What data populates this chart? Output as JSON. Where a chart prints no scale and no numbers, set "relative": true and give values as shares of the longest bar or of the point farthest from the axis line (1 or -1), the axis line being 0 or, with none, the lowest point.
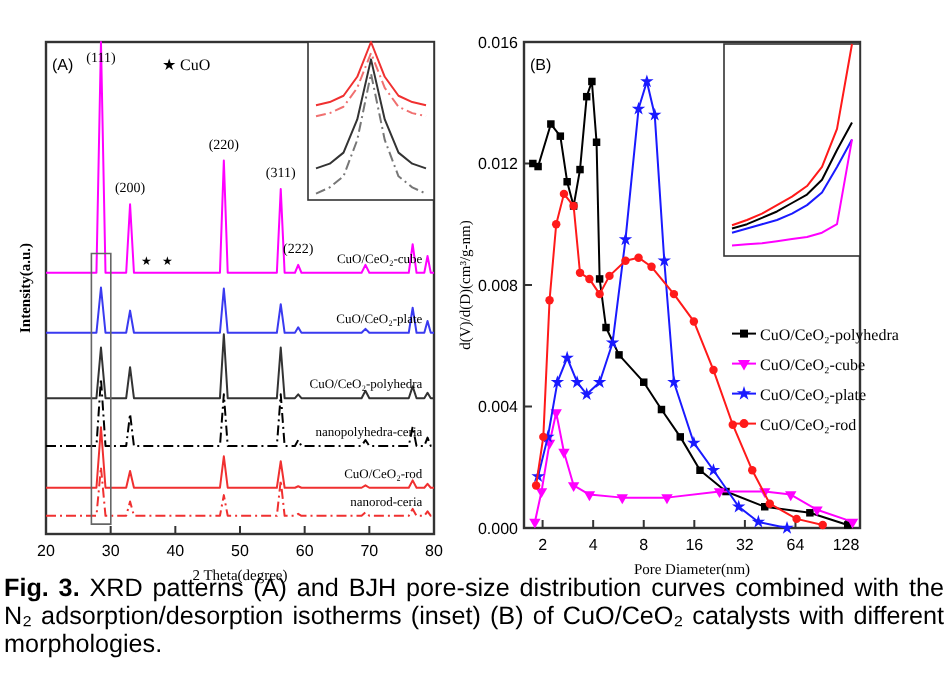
{
  "chart_data": [
    {
      "type": "line",
      "relative": true,
      "xlabel": "2 Theta(degree)",
      "ylabel": "Intensity(a.u.)",
      "xlim": [
        20,
        80
      ],
      "xticks": [
        20,
        30,
        40,
        50,
        60,
        70,
        80
      ],
      "x": [
        20,
        27.8,
        28.5,
        29.2,
        32.4,
        33,
        33.6,
        35.5,
        38.7,
        46.9,
        47.5,
        48.1,
        55.7,
        56.3,
        56.9,
        58.5,
        59,
        59.5,
        68.8,
        69.4,
        70,
        76.1,
        76.7,
        77.3,
        78.5,
        79,
        79.5,
        80
      ],
      "series": [
        {
          "name": "CuO/CeO₂-cube",
          "color": "#ff00ff",
          "values": [
            0.531,
            0.531,
            1,
            0.531,
            0.531,
            0.67,
            0.531,
            0.531,
            0.531,
            0.531,
            0.759,
            0.531,
            0.531,
            0.701,
            0.531,
            0.531,
            0.547,
            0.531,
            0.531,
            0.547,
            0.531,
            0.531,
            0.589,
            0.531,
            0.531,
            0.565,
            0.531,
            0.531
          ]
        },
        {
          "name": "CuO/CeO₂-plate",
          "color": "#3a3af0",
          "values": [
            0.409,
            0.409,
            0.501,
            0.409,
            0.409,
            0.454,
            0.409,
            0.409,
            0.409,
            0.409,
            0.499,
            0.409,
            0.409,
            0.467,
            0.409,
            0.409,
            0.42,
            0.409,
            0.409,
            0.417,
            0.409,
            0.409,
            0.46,
            0.409,
            0.409,
            0.433,
            0.409,
            0.409
          ]
        },
        {
          "name": "CuO/CeO₂-polyhedra",
          "color": "#333333",
          "values": [
            0.276,
            0.276,
            0.379,
            0.276,
            0.276,
            0.339,
            0.276,
            0.276,
            0.276,
            0.276,
            0.406,
            0.276,
            0.276,
            0.379,
            0.276,
            0.276,
            0.284,
            0.276,
            0.276,
            0.291,
            0.276,
            0.276,
            0.3,
            0.276,
            0.276,
            0.287,
            0.276,
            0.276
          ]
        },
        {
          "name": "nanopolyhedra-ceria",
          "color": "#000000",
          "line_style": "dashed",
          "values": [
            0.179,
            0.179,
            0.316,
            0.179,
            0.179,
            0.244,
            0.179,
            0.179,
            0.179,
            0.179,
            0.284,
            0.179,
            0.179,
            0.284,
            0.179,
            0.179,
            0.191,
            0.179,
            0.179,
            0.191,
            0.179,
            0.179,
            0.218,
            0.179,
            0.179,
            0.196,
            0.179,
            0.179
          ]
        },
        {
          "name": "CuO/CeO₂-rod",
          "color": "#f03030",
          "values": [
            0.094,
            0.094,
            0.217,
            0.094,
            0.094,
            0.128,
            0.094,
            0.094,
            0.094,
            0.094,
            0.158,
            0.094,
            0.094,
            0.148,
            0.094,
            0.094,
            0.097,
            0.094,
            0.094,
            0.099,
            0.094,
            0.094,
            0.109,
            0.094,
            0.094,
            0.102,
            0.094,
            0.094
          ]
        },
        {
          "name": "nanorod-ceria",
          "color": "#f03030",
          "line_style": "dashed",
          "values": [
            0.037,
            0.037,
            0.136,
            0.037,
            0.037,
            0.066,
            0.037,
            0.037,
            0.037,
            0.037,
            0.079,
            0.037,
            0.037,
            0.109,
            0.037,
            0.037,
            0.041,
            0.037,
            0.037,
            0.044,
            0.037,
            0.037,
            0.051,
            0.037,
            0.037,
            0.046,
            0.037,
            0.037
          ]
        }
      ],
      "annotations": [
        "(A)",
        "★ CuO",
        "Fig. 3. XRD patterns (A) and BJH pore-size distribution curves combined with the N₂ adsorption/desorption isotherms (inset) (B) of CuO/CeO₂ catalysts with different morphologies.",
        {
          "text": "(111)",
          "x": 28.5,
          "y": 1
        },
        {
          "text": "(200)",
          "x": 33,
          "y": 0.67
        },
        {
          "text": "(220)",
          "x": 47.5,
          "y": 0.759
        },
        {
          "text": "(311)",
          "x": 56.3,
          "y": 0.701
        },
        {
          "text": "(222)",
          "x": 59,
          "y": 0.547
        },
        {
          "text": "★",
          "x": 35.5,
          "y": 0.531
        },
        {
          "text": "★",
          "x": 38.7,
          "y": 0.531
        }
      ]
    },
    {
      "type": "line",
      "relative": true,
      "categories": [
        null,
        null,
        null,
        null,
        null,
        null,
        null,
        null,
        null
      ],
      "series": [
        {
          "color": "#f03030",
          "values": [
            0.6,
            0.62,
            0.66,
            0.78,
            1,
            0.78,
            0.66,
            0.62,
            0.6
          ]
        },
        {
          "color": "#f07070",
          "line_style": "dashed",
          "values": [
            0.53,
            0.55,
            0.59,
            0.71,
            0.93,
            0.71,
            0.59,
            0.55,
            0.53
          ]
        },
        {
          "color": "#333333",
          "values": [
            0.2,
            0.23,
            0.3,
            0.51,
            0.89,
            0.51,
            0.3,
            0.23,
            0.2
          ]
        },
        {
          "color": "#777777",
          "line_style": "dashed",
          "values": [
            0.04,
            0.08,
            0.15,
            0.38,
            0.8,
            0.38,
            0.15,
            0.08,
            0.04
          ]
        }
      ]
    },
    {
      "type": "line",
      "log": "x",
      "xlabel": "Pore Diameter(nm)",
      "ylabel": "d(V)/d(D)(cm³/g-nm)",
      "xlim": [
        1.55,
        155
      ],
      "xticks": [
        2,
        4,
        8,
        16,
        32,
        64,
        128
      ],
      "ylim": [
        0,
        0.016
      ],
      "yticks": [
        {
          "value": 0,
          "label": "0.000"
        },
        {
          "value": 0.004,
          "label": "0.004"
        },
        {
          "value": 0.008,
          "label": "0.008"
        },
        {
          "value": 0.012,
          "label": "0.012"
        },
        {
          "value": 0.016,
          "label": "0.016"
        }
      ],
      "legend": "right",
      "series": [
        {
          "name": "CuO/CeO₂-polyhedra",
          "color": "#000000",
          "marker": "square",
          "x": [
            1.75,
            1.88,
            2.24,
            2.55,
            2.8,
            3.06,
            3.34,
            3.66,
            3.93,
            4.19,
            4.37,
            4.77,
            5.7,
            8,
            10.2,
            13.2,
            17.3,
            24.7,
            42,
            78,
            131
          ],
          "values": [
            0.012,
            0.0119,
            0.0133,
            0.0129,
            0.0114,
            0.0106,
            0.0118,
            0.0142,
            0.0147,
            0.0127,
            0.0082,
            0.0066,
            0.0057,
            0.0048,
            0.0039,
            0.003,
            0.0019,
            0.0012,
            0.0007,
            0.0005,
            0.0001
          ]
        },
        {
          "name": "CuO/CeO₂-cube",
          "color": "#ff00ff",
          "marker": "triangle",
          "x": [
            1.8,
            1.97,
            2.2,
            2.41,
            2.68,
            3.06,
            3.8,
            5.96,
            11,
            22.6,
            42,
            60,
            86,
            140
          ],
          "values": [
            0.0002,
            0.0012,
            0.0028,
            0.0038,
            0.0025,
            0.0014,
            0.0011,
            0.001,
            0.001,
            0.0012,
            0.0012,
            0.0011,
            0.0006,
            0.0002
          ]
        },
        {
          "name": "CuO/CeO₂-plate",
          "color": "#1a1aff",
          "marker": "star",
          "x": [
            1.88,
            2.15,
            2.45,
            2.8,
            3.21,
            3.66,
            4.37,
            5.22,
            6.23,
            7.45,
            8.35,
            9.3,
            10.6,
            12.1,
            15.9,
            20.8,
            29.4,
            38.5,
            57
          ],
          "values": [
            0.0017,
            0.003,
            0.0048,
            0.0056,
            0.0048,
            0.0044,
            0.0048,
            0.0061,
            0.0095,
            0.0138,
            0.0147,
            0.0136,
            0.0088,
            0.0048,
            0.0028,
            0.0019,
            0.0007,
            0.0002,
            0
          ]
        },
        {
          "name": "CuO/CeO₂-rod",
          "color": "#ff1a1a",
          "marker": "circle",
          "x": [
            1.83,
            2.02,
            2.2,
            2.41,
            2.68,
            3.06,
            3.34,
            3.8,
            4.37,
            5,
            6.23,
            7.45,
            8.9,
            12.1,
            15.9,
            20.8,
            27.1,
            35.4,
            45,
            65,
            93
          ],
          "values": [
            0.0014,
            0.003,
            0.0075,
            0.01,
            0.011,
            0.0106,
            0.0084,
            0.0082,
            0.0077,
            0.0083,
            0.0088,
            0.0089,
            0.0086,
            0.0077,
            0.0068,
            0.0052,
            0.0034,
            0.0019,
            0.0008,
            0.0003,
            0.0001
          ]
        }
      ],
      "annotations": [
        "(B)"
      ]
    },
    {
      "type": "line",
      "relative": true,
      "categories": [
        null,
        null,
        null,
        null,
        null,
        null,
        null,
        null,
        null
      ],
      "series": [
        {
          "color": "#ff1a1a",
          "values": [
            0.145,
            0.17,
            0.2,
            0.24,
            0.28,
            0.33,
            0.42,
            0.6,
            1
          ]
        },
        {
          "color": "#000000",
          "values": [
            0.13,
            0.15,
            0.18,
            0.21,
            0.25,
            0.29,
            0.36,
            0.5,
            0.63
          ]
        },
        {
          "color": "#1a1aff",
          "values": [
            0.11,
            0.13,
            0.15,
            0.17,
            0.2,
            0.24,
            0.3,
            0.42,
            0.55
          ]
        },
        {
          "color": "#ff00ff",
          "values": [
            0.05,
            0.055,
            0.06,
            0.07,
            0.08,
            0.09,
            0.11,
            0.15,
            0.55
          ]
        }
      ]
    }
  ]
}
